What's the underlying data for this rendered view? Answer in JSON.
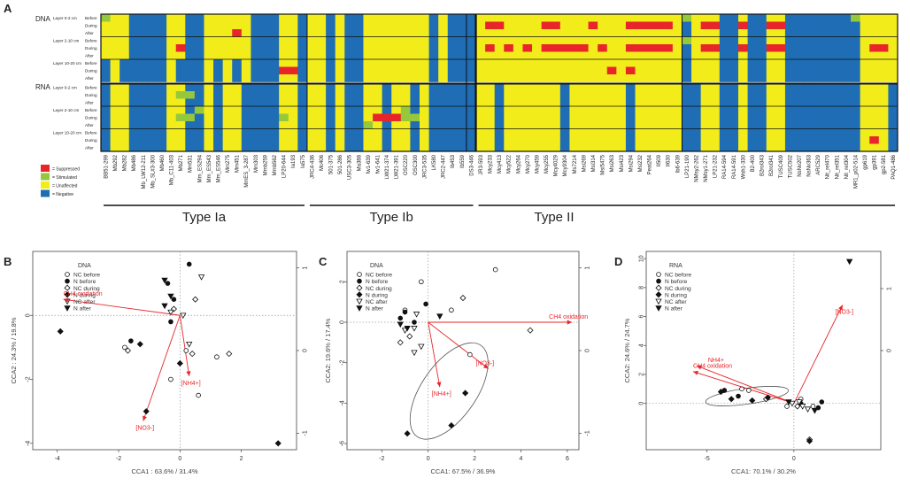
{
  "panel_labels": {
    "A": "A",
    "B": "B",
    "C": "C",
    "D": "D"
  },
  "heatmap": {
    "section_dna": "DNA",
    "section_rna": "RNA",
    "rows": [
      {
        "layer": "Layer 0-2 cm",
        "phase": "Before"
      },
      {
        "layer": "",
        "phase": "During"
      },
      {
        "layer": "",
        "phase": "After"
      },
      {
        "layer": "Layer 2-10 cm",
        "phase": "Before"
      },
      {
        "layer": "",
        "phase": "During"
      },
      {
        "layer": "",
        "phase": "After"
      },
      {
        "layer": "Layer 10-20 cm",
        "phase": "Before"
      },
      {
        "layer": "",
        "phase": "During"
      },
      {
        "layer": "",
        "phase": "After"
      },
      {
        "layer": "Layer 0-2 cm",
        "phase": "Before"
      },
      {
        "layer": "",
        "phase": "During"
      },
      {
        "layer": "",
        "phase": "After"
      },
      {
        "layer": "Layer 2-10 cm",
        "phase": "Before"
      },
      {
        "layer": "",
        "phase": "During"
      },
      {
        "layer": "",
        "phase": "After"
      },
      {
        "layer": "Layer 10-20 cm",
        "phase": "Before"
      },
      {
        "layer": "",
        "phase": "During"
      },
      {
        "layer": "",
        "phase": "After"
      }
    ],
    "legend": [
      {
        "label": "= Suppressed",
        "color": "#e8262a"
      },
      {
        "label": "= Stimulated",
        "color": "#96c83c"
      },
      {
        "label": "= Unaffected",
        "color": "#f2ec1a"
      },
      {
        "label": "= Negative",
        "color": "#1f6db5"
      }
    ],
    "columns": [
      "BB51-299",
      "Mb292",
      "Mb282",
      "Mb486",
      "Mb_LW12-211",
      "Mb_SL#3-300",
      "Mb460",
      "Mb_C11-403",
      "Mb271",
      "Mm531",
      "Mm_ES294",
      "Mm_ES543",
      "Mm_ES546",
      "Mm275",
      "Mm451",
      "MmES_3-287",
      "Mm303",
      "Mmb259",
      "Mmb562",
      "LP20-644",
      "Ia193",
      "Ia575",
      "JRC4-436",
      "Mc406",
      "501-375",
      "501-286",
      "USC3-305",
      "Ma388",
      "fw1-639",
      "fw1-641",
      "LW21-374",
      "LW21-391",
      "OSC220",
      "OSC300",
      "JRC3-535",
      "LK580",
      "JRC2-447",
      "Ib453",
      "Ib559",
      "DS3-446",
      "JR3-593",
      "Mcy233",
      "Mcy413",
      "Mcy522",
      "Mcy264",
      "Mcy270",
      "Mcy459",
      "Mcy255",
      "Mcy4029",
      "Mcy9304",
      "Ms7214",
      "Msi269",
      "Msi314",
      "Msi5475",
      "Msi263",
      "Msi423",
      "Msi294",
      "Msi232",
      "Peat264",
      "II509",
      "II630",
      "Ib6-639",
      "LP21-190",
      "NMsy2-262",
      "NMsy1-271",
      "LP21-232",
      "RA14-594",
      "RA14-591",
      "Wsh1-330",
      "B2-400",
      "B2rol343",
      "B2rol341",
      "TUSC409",
      "TUSC502",
      "NsNv207",
      "NsNv363",
      "ARC529",
      "Nit_rel470",
      "Nit_rel351",
      "Nit_rel304",
      "MR1_p02-514",
      "gp619",
      "gp391",
      "gp2-581",
      "PAQ1-486"
    ],
    "groups": [
      {
        "label": "Type Ia"
      },
      {
        "label": "Type Ib"
      },
      {
        "label": "Type II"
      }
    ]
  },
  "chart_data": [
    {
      "type": "scatter",
      "panel": "B",
      "title": "DNA",
      "xlabel": "CCA1 : 63.6% / 31.4%",
      "ylabel": "CCA2 : 24.3% / 19.8%",
      "xlim": [
        -4.8,
        3.8
      ],
      "ylim": [
        -4.2,
        2.0
      ],
      "y2lim": [
        -1.2,
        1.2
      ],
      "xticks": [
        -4,
        -2,
        0,
        2
      ],
      "yticks": [
        -4,
        -2,
        0
      ],
      "y2ticks": [
        -1,
        0,
        1
      ],
      "legend": [
        "NC before",
        "N before",
        "NC during",
        "N during",
        "NC after",
        "N after"
      ],
      "series": [
        {
          "name": "NC before",
          "marker": "open-circle",
          "points": [
            [
              -1.8,
              -1.0
            ],
            [
              0.2,
              -1.1
            ],
            [
              -0.3,
              -2.0
            ],
            [
              0.6,
              -2.5
            ],
            [
              1.2,
              -1.3
            ]
          ]
        },
        {
          "name": "N before",
          "marker": "filled-circle",
          "points": [
            [
              -0.4,
              1.0
            ],
            [
              0.3,
              1.6
            ],
            [
              -0.2,
              0.5
            ],
            [
              -1.6,
              -0.8
            ],
            [
              -0.3,
              -0.2
            ]
          ]
        },
        {
          "name": "NC during",
          "marker": "open-diamond",
          "points": [
            [
              0.5,
              0.5
            ],
            [
              -0.2,
              0.2
            ],
            [
              0.4,
              -1.2
            ],
            [
              1.6,
              -1.2
            ],
            [
              -1.7,
              -1.1
            ]
          ]
        },
        {
          "name": "N during",
          "marker": "filled-diamond",
          "points": [
            [
              -3.9,
              -0.5
            ],
            [
              3.2,
              -4.0
            ],
            [
              -1.1,
              -3.0
            ],
            [
              0.0,
              -1.5
            ],
            [
              -1.3,
              -0.9
            ]
          ]
        },
        {
          "name": "NC after",
          "marker": "open-triangle",
          "points": [
            [
              0.7,
              1.2
            ],
            [
              -0.3,
              0.1
            ],
            [
              0.1,
              0.0
            ],
            [
              0.3,
              -0.9
            ]
          ]
        },
        {
          "name": "N after",
          "marker": "filled-triangle",
          "points": [
            [
              -0.5,
              1.1
            ],
            [
              -0.5,
              0.3
            ],
            [
              -0.3,
              0.6
            ]
          ]
        }
      ],
      "vectors": [
        {
          "label": "CH4 oxidation",
          "to": [
            -3.8,
            0.5
          ]
        },
        {
          "label": "[NH4+]",
          "to": [
            0.3,
            -1.9
          ]
        },
        {
          "label": "[NO3-]",
          "to": [
            -1.2,
            -3.3
          ]
        }
      ],
      "ellipse": null
    },
    {
      "type": "scatter",
      "panel": "C",
      "title": "DNA",
      "xlabel": "CCA1: 67.5% / 36.9%",
      "ylabel": "CCA2: 19.6% / 17.4%",
      "xlim": [
        -3.5,
        6.5
      ],
      "ylim": [
        -6.3,
        3.5
      ],
      "y2lim": [
        -1.2,
        1.2
      ],
      "xticks": [
        -2,
        0,
        2,
        4,
        6
      ],
      "yticks": [
        -6,
        -4,
        -2,
        0,
        2
      ],
      "y2ticks": [
        -1,
        0,
        1
      ],
      "legend": [
        "NC before",
        "N before",
        "NC during",
        "N during",
        "NC after",
        "N after"
      ],
      "series": [
        {
          "name": "NC before",
          "marker": "open-circle",
          "points": [
            [
              -0.3,
              2.0
            ],
            [
              2.9,
              2.6
            ],
            [
              1.8,
              -1.6
            ],
            [
              1.0,
              0.6
            ],
            [
              -1.0,
              0.6
            ]
          ]
        },
        {
          "name": "N before",
          "marker": "filled-circle",
          "points": [
            [
              -1.0,
              0.5
            ],
            [
              -0.1,
              0.9
            ],
            [
              -1.2,
              0.2
            ],
            [
              -0.6,
              0.0
            ]
          ]
        },
        {
          "name": "NC during",
          "marker": "open-diamond",
          "points": [
            [
              1.5,
              1.2
            ],
            [
              4.4,
              -0.4
            ],
            [
              -1.2,
              -1.0
            ],
            [
              -0.8,
              -0.7
            ]
          ]
        },
        {
          "name": "N during",
          "marker": "filled-diamond",
          "points": [
            [
              -0.9,
              -5.5
            ],
            [
              1.0,
              -5.1
            ],
            [
              1.6,
              -3.5
            ]
          ]
        },
        {
          "name": "NC after",
          "marker": "open-triangle",
          "points": [
            [
              -1.0,
              -0.4
            ],
            [
              -0.6,
              -0.3
            ],
            [
              -0.6,
              -1.5
            ],
            [
              -0.3,
              -1.2
            ],
            [
              -0.5,
              0.4
            ]
          ]
        },
        {
          "name": "N after",
          "marker": "filled-triangle",
          "points": [
            [
              -1.2,
              -0.1
            ],
            [
              -0.9,
              -0.3
            ],
            [
              0.5,
              0.3
            ]
          ]
        }
      ],
      "vectors": [
        {
          "label": "CH4 oxidation",
          "to": [
            6.2,
            0.0
          ]
        },
        {
          "label": "[NH4+]",
          "to": [
            0.5,
            -3.2
          ]
        },
        {
          "label": "[NO3-]",
          "to": [
            2.6,
            -2.3
          ]
        }
      ],
      "ellipse": {
        "cx": 0.9,
        "cy": -3.4,
        "rx": 2.4,
        "ry": 1.35,
        "angle": -55
      }
    },
    {
      "type": "scatter",
      "panel": "D",
      "title": "RNA",
      "xlabel": "CCA1: 70.1% / 30.2%",
      "ylabel": "CCA2: 24.6% / 24.7%",
      "xlim": [
        -8.5,
        5.0
      ],
      "ylim": [
        -3.2,
        10.5
      ],
      "y2lim": [
        -1.6,
        1.6
      ],
      "xticks": [
        -5,
        0
      ],
      "yticks": [
        0,
        2,
        4,
        6,
        8,
        10
      ],
      "y2ticks": [
        0,
        1
      ],
      "legend": [
        "NC before",
        "N before",
        "NC during",
        "N during",
        "NC after",
        "N after"
      ],
      "series": [
        {
          "name": "NC before",
          "marker": "open-circle",
          "points": [
            [
              -3.0,
              1.0
            ],
            [
              -2.6,
              0.9
            ],
            [
              0.4,
              0.3
            ],
            [
              1.1,
              -0.2
            ],
            [
              -0.4,
              -0.2
            ]
          ]
        },
        {
          "name": "N before",
          "marker": "filled-circle",
          "points": [
            [
              -4.0,
              0.9
            ],
            [
              -3.2,
              0.5
            ],
            [
              1.4,
              -0.3
            ],
            [
              1.6,
              0.1
            ],
            [
              0.4,
              0.0
            ]
          ]
        },
        {
          "name": "NC during",
          "marker": "open-diamond",
          "points": [
            [
              0.9,
              -2.5
            ],
            [
              -1.6,
              0.3
            ],
            [
              0.2,
              -0.2
            ]
          ]
        },
        {
          "name": "N during",
          "marker": "filled-diamond",
          "points": [
            [
              -4.2,
              0.8
            ],
            [
              -3.6,
              0.3
            ],
            [
              -2.4,
              0.2
            ],
            [
              -1.5,
              0.4
            ],
            [
              0.9,
              -2.6
            ]
          ]
        },
        {
          "name": "NC after",
          "marker": "open-triangle",
          "points": [
            [
              0.3,
              0.1
            ],
            [
              0.8,
              -0.4
            ],
            [
              -0.1,
              0.0
            ],
            [
              0.5,
              -0.2
            ]
          ]
        },
        {
          "name": "N after",
          "marker": "filled-triangle",
          "points": [
            [
              3.2,
              9.8
            ],
            [
              1.2,
              -0.5
            ],
            [
              -0.3,
              0.1
            ]
          ]
        }
      ],
      "vectors": [
        {
          "label": "[NO3-]",
          "to": [
            2.8,
            6.8
          ]
        },
        {
          "label": "NH4+",
          "to": [
            -5.6,
            2.6
          ]
        },
        {
          "label": "CH4 oxidation",
          "to": [
            -5.8,
            2.2
          ]
        }
      ],
      "ellipse": {
        "cx": -2.7,
        "cy": 0.5,
        "rx": 2.4,
        "ry": 0.55,
        "angle": -8
      }
    }
  ]
}
